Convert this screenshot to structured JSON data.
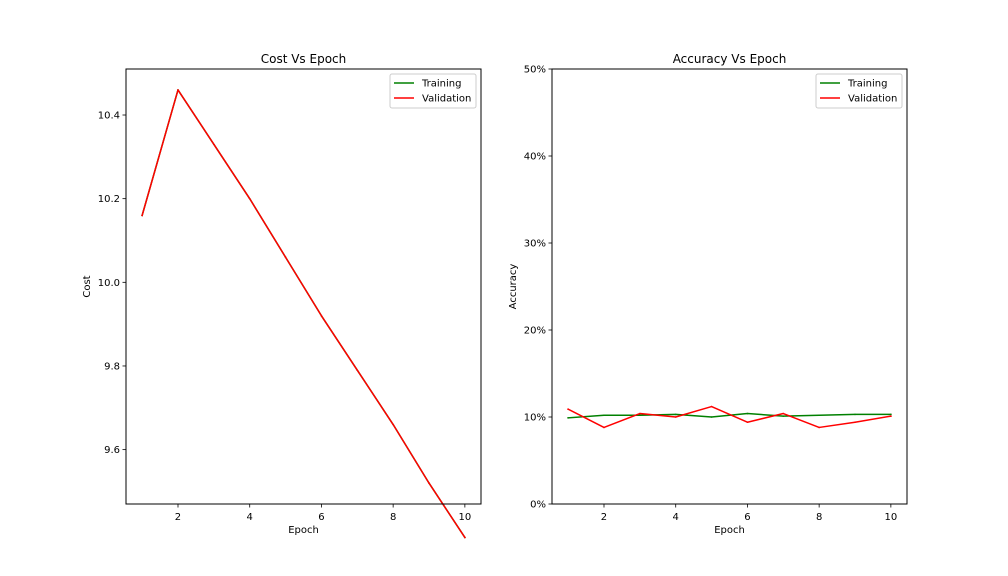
{
  "chart_data": [
    {
      "type": "line",
      "title": "Cost Vs Epoch",
      "xlabel": "Epoch",
      "ylabel": "Cost",
      "x": [
        1,
        2,
        3,
        4,
        5,
        6,
        7,
        8,
        9,
        10
      ],
      "xlim": [
        0.55,
        10.45
      ],
      "ylim": [
        9.47,
        10.51
      ],
      "xticks": [
        2,
        4,
        6,
        8,
        10
      ],
      "yticks": [
        9.6,
        9.8,
        10.0,
        10.2,
        10.4
      ],
      "ytick_labels": [
        "9.6",
        "9.8",
        "10.0",
        "10.2",
        "10.4"
      ],
      "legend_position": "top-right",
      "grid": false,
      "series": [
        {
          "name": "Training",
          "color": "#008000",
          "values": [
            10.16,
            10.46,
            10.33,
            10.2,
            10.06,
            9.92,
            9.79,
            9.66,
            9.52,
            9.39
          ]
        },
        {
          "name": "Validation",
          "color": "#ff0000",
          "values": [
            10.16,
            10.46,
            10.33,
            10.2,
            10.06,
            9.92,
            9.79,
            9.66,
            9.52,
            9.39
          ]
        }
      ]
    },
    {
      "type": "line",
      "title": "Accuracy Vs Epoch",
      "xlabel": "Epoch",
      "ylabel": "Accuracy",
      "x": [
        1,
        2,
        3,
        4,
        5,
        6,
        7,
        8,
        9,
        10
      ],
      "xlim": [
        0.55,
        10.45
      ],
      "ylim": [
        0,
        0.5
      ],
      "xticks": [
        2,
        4,
        6,
        8,
        10
      ],
      "yticks": [
        0,
        0.1,
        0.2,
        0.3,
        0.4,
        0.5
      ],
      "ytick_labels": [
        "0%",
        "10%",
        "20%",
        "30%",
        "40%",
        "50%"
      ],
      "legend_position": "top-right",
      "grid": false,
      "series": [
        {
          "name": "Training",
          "color": "#008000",
          "values": [
            0.099,
            0.102,
            0.102,
            0.103,
            0.1,
            0.104,
            0.101,
            0.102,
            0.103,
            0.103
          ]
        },
        {
          "name": "Validation",
          "color": "#ff0000",
          "values": [
            0.109,
            0.088,
            0.104,
            0.1,
            0.112,
            0.094,
            0.104,
            0.088,
            0.094,
            0.101
          ]
        }
      ]
    }
  ]
}
